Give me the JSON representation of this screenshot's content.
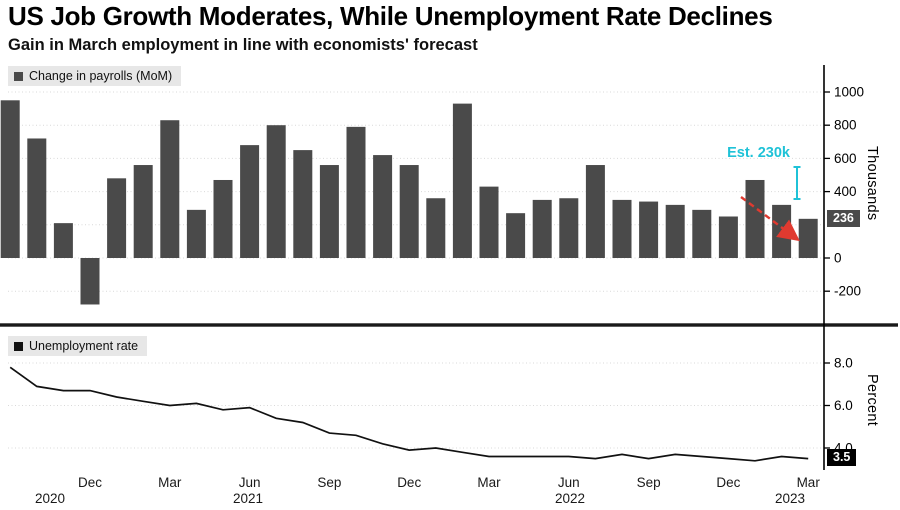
{
  "header": {
    "title": "US Job Growth Moderates, While Unemployment Rate Declines",
    "subtitle": "Gain in March employment in line with economists' forecast"
  },
  "legends": {
    "payrolls": "Change in payrolls (MoM)",
    "unemployment": "Unemployment rate"
  },
  "annotations": {
    "estimate_label": "Est. 230k",
    "last_payroll_badge": "236",
    "last_unemployment_badge": "3.5"
  },
  "axes": {
    "top_right_label": "Thousands",
    "bottom_right_label": "Percent",
    "x_month_labels": [
      "Dec",
      "Mar",
      "Jun",
      "Sep",
      "Dec",
      "Mar",
      "Jun",
      "Sep",
      "Dec",
      "Mar"
    ],
    "x_year_labels": [
      "2020",
      "2021",
      "2022",
      "2023"
    ]
  },
  "colors": {
    "bar": "#4a4a4a",
    "line": "#111111",
    "estimate": "#1fc2d7",
    "trend_arrow": "#e03a30",
    "badge_payroll_bg": "#4a4a4a",
    "badge_unemployment_bg": "#000000",
    "gridline": "#d9d9d9"
  },
  "chart_data": [
    {
      "type": "bar",
      "title": "Change in payrolls (MoM)",
      "unit": "thousands",
      "ylabel": "Thousands",
      "ylim": [
        -350,
        1100
      ],
      "yticks": [
        1000,
        800,
        600,
        400,
        0,
        -200
      ],
      "x": [
        "Sep 2020",
        "Oct 2020",
        "Nov 2020",
        "Dec 2020",
        "Jan 2021",
        "Feb 2021",
        "Mar 2021",
        "Apr 2021",
        "May 2021",
        "Jun 2021",
        "Jul 2021",
        "Aug 2021",
        "Sep 2021",
        "Oct 2021",
        "Nov 2021",
        "Dec 2021",
        "Jan 2022",
        "Feb 2022",
        "Mar 2022",
        "Apr 2022",
        "May 2022",
        "Jun 2022",
        "Jul 2022",
        "Aug 2022",
        "Sep 2022",
        "Oct 2022",
        "Nov 2022",
        "Dec 2022",
        "Jan 2023",
        "Feb 2023",
        "Mar 2023"
      ],
      "values": [
        950,
        720,
        210,
        -280,
        480,
        560,
        830,
        290,
        470,
        680,
        800,
        650,
        560,
        790,
        620,
        560,
        360,
        930,
        430,
        270,
        350,
        360,
        560,
        350,
        340,
        320,
        290,
        250,
        470,
        320,
        236
      ],
      "estimate": 230,
      "last_value": 236
    },
    {
      "type": "line",
      "title": "Unemployment rate",
      "unit": "percent",
      "ylabel": "Percent",
      "ylim": [
        3.0,
        9.0
      ],
      "yticks": [
        8.0,
        6.0,
        4.0
      ],
      "x": [
        "Sep 2020",
        "Oct 2020",
        "Nov 2020",
        "Dec 2020",
        "Jan 2021",
        "Feb 2021",
        "Mar 2021",
        "Apr 2021",
        "May 2021",
        "Jun 2021",
        "Jul 2021",
        "Aug 2021",
        "Sep 2021",
        "Oct 2021",
        "Nov 2021",
        "Dec 2021",
        "Jan 2022",
        "Feb 2022",
        "Mar 2022",
        "Apr 2022",
        "May 2022",
        "Jun 2022",
        "Jul 2022",
        "Aug 2022",
        "Sep 2022",
        "Oct 2022",
        "Nov 2022",
        "Dec 2022",
        "Jan 2023",
        "Feb 2023",
        "Mar 2023"
      ],
      "values": [
        7.8,
        6.9,
        6.7,
        6.7,
        6.4,
        6.2,
        6.0,
        6.1,
        5.8,
        5.9,
        5.4,
        5.2,
        4.7,
        4.6,
        4.2,
        3.9,
        4.0,
        3.8,
        3.6,
        3.6,
        3.6,
        3.6,
        3.5,
        3.7,
        3.5,
        3.7,
        3.6,
        3.5,
        3.4,
        3.6,
        3.5
      ],
      "last_value": 3.5
    }
  ]
}
